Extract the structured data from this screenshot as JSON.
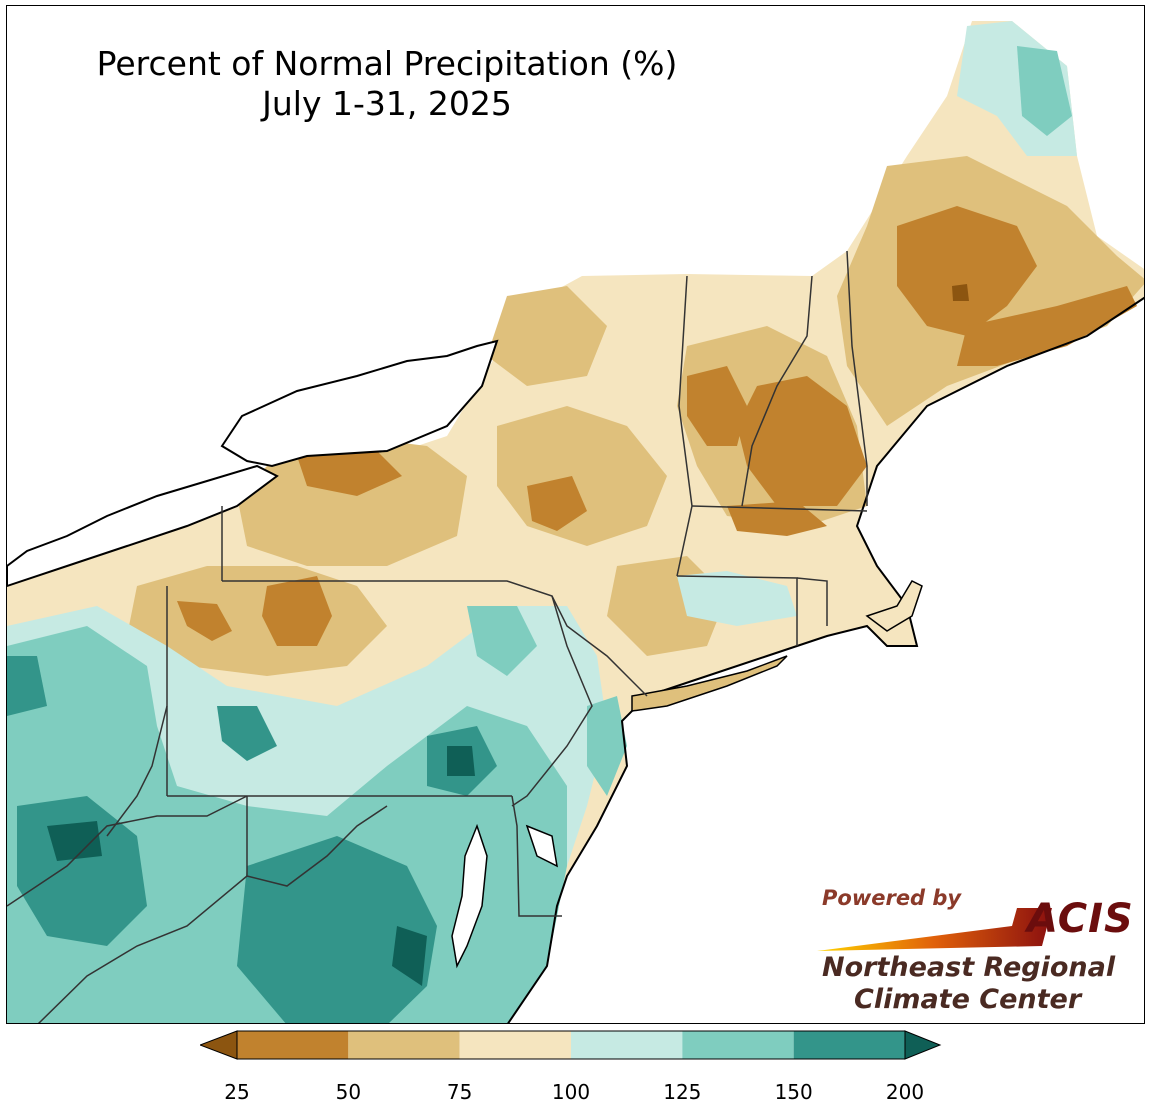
{
  "title": {
    "line1": "Percent of Normal Precipitation (%)",
    "line2": "July 1-31, 2025"
  },
  "logo": {
    "powered_by": "Powered by",
    "acis": "ACIS",
    "org_line1": "Northeast Regional",
    "org_line2": "Climate Center"
  },
  "legend": {
    "ticks": [
      "25",
      "50",
      "75",
      "100",
      "125",
      "150",
      "200"
    ],
    "bins": [
      {
        "range": "25-50",
        "color": "#c1822e"
      },
      {
        "range": "50-75",
        "color": "#dfc07c"
      },
      {
        "range": "75-100",
        "color": "#f5e5bf"
      },
      {
        "range": "100-125",
        "color": "#c6eae3"
      },
      {
        "range": "125-150",
        "color": "#7fcdbf"
      },
      {
        "range": "150-200",
        "color": "#33958a"
      }
    ],
    "under_color": "#8c5510",
    "over_color": "#0f5f56"
  }
}
